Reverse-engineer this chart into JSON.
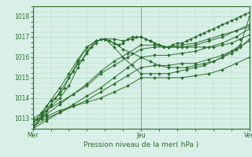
{
  "title": "",
  "xlabel": "Pression niveau de la mer( hPa )",
  "bg_color": "#d8f0e8",
  "grid_color": "#a8d8b8",
  "line_color": "#2d6e2d",
  "marker_color": "#2d6e2d",
  "ylim": [
    1012.5,
    1018.5
  ],
  "xlim": [
    0,
    48
  ],
  "yticks": [
    1013,
    1014,
    1015,
    1016,
    1017,
    1018
  ],
  "xtick_labels": [
    "Mer",
    "Jeu",
    "Ven"
  ],
  "xtick_positions": [
    0,
    24,
    48
  ],
  "series": [
    {
      "x": [
        0,
        1,
        2,
        3,
        4,
        5,
        6,
        7,
        8,
        9,
        10,
        11,
        12,
        13,
        14,
        15,
        16,
        17,
        18,
        19,
        20,
        21,
        22,
        23,
        24,
        25,
        26,
        27,
        28,
        29,
        30,
        31,
        32,
        33,
        34,
        35,
        36,
        37,
        38,
        39,
        40,
        41,
        42,
        43,
        44,
        45,
        46,
        47,
        48
      ],
      "y": [
        1012.7,
        1013.0,
        1013.3,
        1013.6,
        1013.9,
        1014.0,
        1014.2,
        1014.5,
        1015.0,
        1015.3,
        1015.7,
        1015.9,
        1016.2,
        1016.5,
        1016.7,
        1016.9,
        1016.9,
        1016.8,
        1016.7,
        1016.6,
        1016.7,
        1016.9,
        1017.0,
        1017.0,
        1017.0,
        1016.9,
        1016.8,
        1016.7,
        1016.6,
        1016.5,
        1016.5,
        1016.6,
        1016.7,
        1016.7,
        1016.8,
        1016.9,
        1017.0,
        1017.1,
        1017.2,
        1017.3,
        1017.4,
        1017.5,
        1017.6,
        1017.7,
        1017.8,
        1017.9,
        1018.0,
        1018.1,
        1018.2
      ]
    },
    {
      "x": [
        0,
        3,
        6,
        9,
        12,
        15,
        18,
        21,
        24,
        27,
        30,
        33,
        36,
        39,
        42,
        45,
        48
      ],
      "y": [
        1013.0,
        1013.4,
        1013.8,
        1014.2,
        1014.6,
        1015.2,
        1015.6,
        1016.0,
        1016.4,
        1016.5,
        1016.5,
        1016.6,
        1016.7,
        1016.9,
        1017.1,
        1017.3,
        1017.5
      ]
    },
    {
      "x": [
        0,
        3,
        6,
        9,
        12,
        15,
        18,
        21,
        24,
        27,
        30,
        33,
        36,
        39,
        42,
        45,
        48
      ],
      "y": [
        1012.8,
        1013.2,
        1013.7,
        1014.2,
        1014.7,
        1015.3,
        1015.8,
        1016.2,
        1016.6,
        1016.6,
        1016.5,
        1016.5,
        1016.6,
        1016.8,
        1017.0,
        1017.3,
        1017.6
      ]
    },
    {
      "x": [
        0,
        3,
        6,
        9,
        12,
        15,
        18,
        21,
        24,
        27,
        30,
        33,
        36,
        39,
        42,
        45,
        48
      ],
      "y": [
        1012.6,
        1013.0,
        1013.3,
        1013.7,
        1014.1,
        1014.5,
        1015.0,
        1015.5,
        1016.0,
        1016.1,
        1016.1,
        1016.2,
        1016.3,
        1016.5,
        1016.7,
        1017.0,
        1017.4
      ]
    },
    {
      "x": [
        0,
        3,
        6,
        9,
        12,
        15,
        18,
        21,
        24,
        27,
        30,
        33,
        36,
        39,
        42,
        45,
        48
      ],
      "y": [
        1012.5,
        1012.9,
        1013.3,
        1013.6,
        1013.9,
        1014.3,
        1014.7,
        1015.1,
        1015.5,
        1015.6,
        1015.6,
        1015.7,
        1015.7,
        1015.9,
        1016.1,
        1016.4,
        1016.8
      ]
    },
    {
      "x": [
        0,
        3,
        6,
        9,
        12,
        15,
        18,
        21,
        24,
        27,
        30,
        33,
        36,
        39,
        42,
        45,
        48
      ],
      "y": [
        1012.9,
        1013.1,
        1013.4,
        1013.6,
        1013.8,
        1014.0,
        1014.3,
        1014.6,
        1015.0,
        1015.0,
        1015.0,
        1015.0,
        1015.1,
        1015.2,
        1015.4,
        1015.7,
        1016.0
      ]
    },
    {
      "x": [
        0,
        2,
        4,
        6,
        8,
        10,
        12,
        14,
        16,
        18,
        20,
        22,
        24,
        26,
        28,
        30,
        32,
        34,
        36,
        38,
        40,
        42,
        44,
        46,
        48
      ],
      "y": [
        1012.6,
        1013.0,
        1013.6,
        1014.0,
        1014.6,
        1015.5,
        1016.3,
        1016.8,
        1016.9,
        1016.9,
        1016.8,
        1016.9,
        1017.0,
        1016.8,
        1016.6,
        1016.5,
        1016.5,
        1016.5,
        1016.5,
        1016.5,
        1016.5,
        1016.6,
        1016.7,
        1016.9,
        1017.1
      ]
    },
    {
      "x": [
        0,
        2,
        4,
        6,
        8,
        10,
        12,
        14,
        16,
        18,
        20,
        22,
        24,
        26,
        28,
        30,
        32,
        34,
        36,
        38,
        40,
        42,
        44,
        46,
        48
      ],
      "y": [
        1012.5,
        1013.1,
        1013.7,
        1014.3,
        1015.0,
        1015.8,
        1016.5,
        1016.8,
        1016.9,
        1016.7,
        1016.4,
        1016.2,
        1016.0,
        1015.8,
        1015.6,
        1015.5,
        1015.5,
        1015.5,
        1015.6,
        1015.7,
        1015.8,
        1016.0,
        1016.2,
        1016.5,
        1016.9
      ]
    },
    {
      "x": [
        0,
        2,
        4,
        6,
        8,
        10,
        12,
        14,
        16,
        18,
        20,
        22,
        24,
        26,
        28,
        30,
        32,
        34,
        36,
        38,
        40,
        42,
        44,
        46,
        48
      ],
      "y": [
        1012.5,
        1013.2,
        1013.9,
        1014.5,
        1015.2,
        1015.9,
        1016.5,
        1016.8,
        1016.9,
        1016.5,
        1016.0,
        1015.6,
        1015.2,
        1015.2,
        1015.2,
        1015.2,
        1015.3,
        1015.4,
        1015.5,
        1015.6,
        1015.8,
        1016.0,
        1016.3,
        1016.6,
        1018.0
      ]
    }
  ]
}
